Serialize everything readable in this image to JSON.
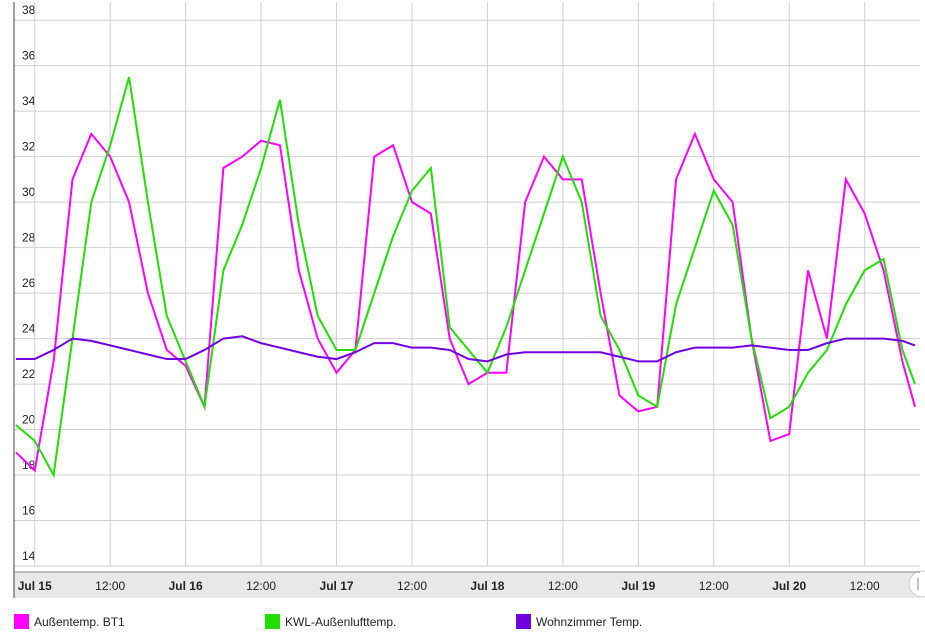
{
  "chart_data": {
    "type": "line",
    "x": [
      -3,
      0,
      3,
      6,
      9,
      12,
      15,
      18,
      21,
      24,
      27,
      30,
      33,
      36,
      39,
      42,
      45,
      48,
      51,
      54,
      57,
      60,
      63,
      66,
      69,
      72,
      75,
      78,
      81,
      84,
      87,
      90,
      93,
      96,
      99,
      102,
      105,
      108,
      111,
      114,
      117,
      120,
      123,
      126,
      129,
      132,
      135,
      138,
      140
    ],
    "series": [
      {
        "name": "Außentemp. BT1",
        "color": "#ff00ff",
        "values": [
          19,
          18.2,
          23,
          31,
          33,
          32,
          30,
          26,
          23.5,
          22.8,
          21,
          31.5,
          32,
          32.7,
          32.5,
          27,
          24,
          22.5,
          23.5,
          32,
          32.5,
          30,
          29.5,
          24,
          22,
          22.5,
          22.5,
          30,
          32,
          31,
          31,
          26,
          21.5,
          20.8,
          21,
          31,
          33,
          31,
          30,
          24,
          19.5,
          19.8,
          27,
          24,
          31,
          29.5,
          27,
          23,
          21
        ]
      },
      {
        "name": "KWL-Außenlufttemp.",
        "color": "#22dd00",
        "values": [
          20.2,
          19.5,
          18,
          24,
          30,
          32.5,
          35.5,
          30,
          25,
          23,
          21,
          27,
          29,
          31.5,
          34.5,
          29,
          25,
          23.5,
          23.5,
          26,
          28.5,
          30.5,
          31.5,
          24.5,
          23.5,
          22.5,
          24.5,
          27,
          29.5,
          32,
          30,
          25,
          23.5,
          21.5,
          21,
          25.5,
          28,
          30.5,
          29,
          24,
          20.5,
          21,
          22.5,
          23.5,
          25.5,
          27,
          27.5,
          23.5,
          22
        ]
      },
      {
        "name": "Wohnzimmer Temp.",
        "color": "#7000dd",
        "values": [
          23.1,
          23.1,
          23.5,
          24,
          23.9,
          23.7,
          23.5,
          23.3,
          23.1,
          23.1,
          23.5,
          24,
          24.1,
          23.8,
          23.6,
          23.4,
          23.2,
          23.1,
          23.4,
          23.8,
          23.8,
          23.6,
          23.6,
          23.5,
          23.1,
          23,
          23.3,
          23.4,
          23.4,
          23.4,
          23.4,
          23.4,
          23.2,
          23,
          23,
          23.4,
          23.6,
          23.6,
          23.6,
          23.7,
          23.6,
          23.5,
          23.5,
          23.8,
          24,
          24,
          24,
          23.9,
          23.7
        ]
      }
    ],
    "xlim": [
      -3.3,
      140.8
    ],
    "xticks": [
      {
        "value": 0,
        "label": "Jul 15"
      },
      {
        "value": 12,
        "label": "12:00"
      },
      {
        "value": 24,
        "label": "Jul 16"
      },
      {
        "value": 36,
        "label": "12:00"
      },
      {
        "value": 48,
        "label": "Jul 17"
      },
      {
        "value": 60,
        "label": "12:00"
      },
      {
        "value": 72,
        "label": "Jul 18"
      },
      {
        "value": 84,
        "label": "12:00"
      },
      {
        "value": 96,
        "label": "Jul 19"
      },
      {
        "value": 108,
        "label": "12:00"
      },
      {
        "value": 120,
        "label": "Jul 20"
      },
      {
        "value": 132,
        "label": "12:00"
      }
    ],
    "ylim": [
      14,
      38.8
    ],
    "yticks": [
      14,
      16,
      18,
      20,
      22,
      24,
      26,
      28,
      30,
      32,
      34,
      36,
      38
    ],
    "grid": true
  }
}
